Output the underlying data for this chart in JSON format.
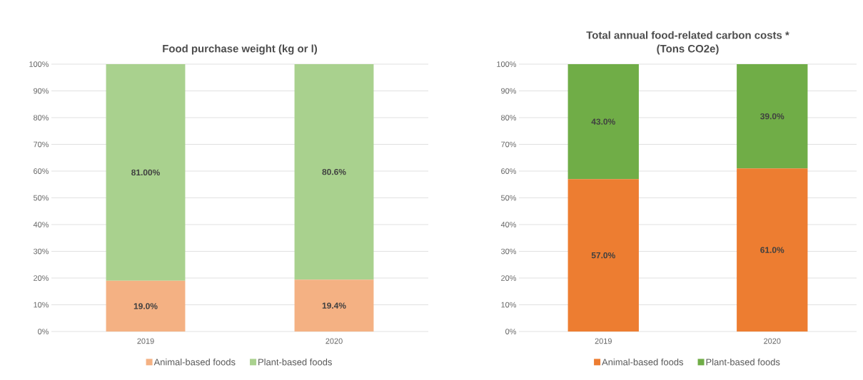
{
  "chart_data": [
    {
      "type": "bar",
      "title": "Food purchase weight (kg or l)",
      "categories": [
        "2019",
        "2020"
      ],
      "stacked": true,
      "ylim": [
        0,
        100
      ],
      "yticks": [
        {
          "value": 0,
          "label": "0%"
        },
        {
          "value": 10,
          "label": "10%"
        },
        {
          "value": 20,
          "label": "20%"
        },
        {
          "value": 30,
          "label": "30%"
        },
        {
          "value": 40,
          "label": "40%"
        },
        {
          "value": 50,
          "label": "50%"
        },
        {
          "value": 60,
          "label": "60%"
        },
        {
          "value": 70,
          "label": "70%"
        },
        {
          "value": 80,
          "label": "80%"
        },
        {
          "value": 90,
          "label": "90%"
        },
        {
          "value": 100,
          "label": "100%"
        }
      ],
      "grid": "y",
      "legend": "bottom",
      "series": [
        {
          "name": "Animal-based foods",
          "color": "#f4b183",
          "values": [
            19.0,
            19.4
          ],
          "value_labels": [
            "19.0%",
            "19.4%"
          ]
        },
        {
          "name": "Plant-based foods",
          "color": "#a9d18e",
          "values": [
            81.0,
            80.6
          ],
          "value_labels": [
            "81.00%",
            "80.6%"
          ]
        }
      ]
    },
    {
      "type": "bar",
      "title": "Total annual food-related carbon costs *",
      "subtitle": "(Tons CO2e)",
      "categories": [
        "2019",
        "2020"
      ],
      "stacked": true,
      "ylim": [
        0,
        100
      ],
      "yticks": [
        {
          "value": 0,
          "label": "0%"
        },
        {
          "value": 10,
          "label": "10%"
        },
        {
          "value": 20,
          "label": "20%"
        },
        {
          "value": 30,
          "label": "30%"
        },
        {
          "value": 40,
          "label": "40%"
        },
        {
          "value": 50,
          "label": "50%"
        },
        {
          "value": 60,
          "label": "60%"
        },
        {
          "value": 70,
          "label": "70%"
        },
        {
          "value": 80,
          "label": "80%"
        },
        {
          "value": 90,
          "label": "90%"
        },
        {
          "value": 100,
          "label": "100%"
        }
      ],
      "grid": "y",
      "legend": "bottom",
      "series": [
        {
          "name": "Animal-based foods",
          "color": "#ed7d31",
          "values": [
            57.0,
            61.0
          ],
          "value_labels": [
            "57.0%",
            "61.0%"
          ]
        },
        {
          "name": "Plant-based foods",
          "color": "#70ad47",
          "values": [
            43.0,
            39.0
          ],
          "value_labels": [
            "43.0%",
            "39.0%"
          ]
        }
      ]
    }
  ]
}
